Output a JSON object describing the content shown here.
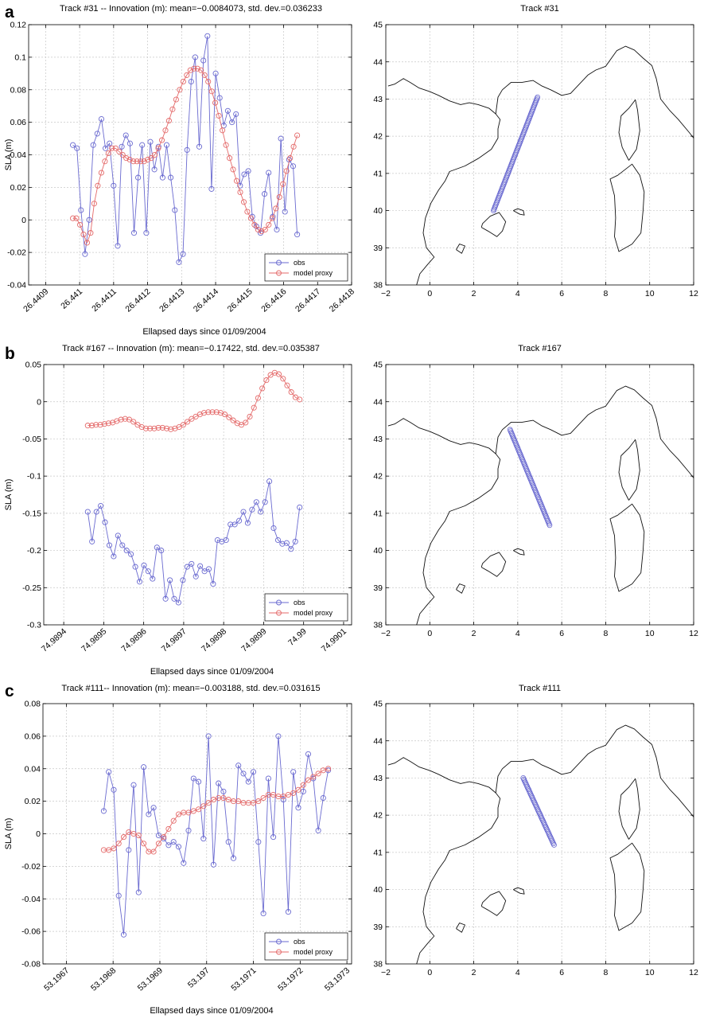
{
  "figure": {
    "panel_letters": [
      "a",
      "b",
      "c"
    ]
  },
  "colors": {
    "obs": "#6a6ad0",
    "model": "#e46a6a",
    "grid": "#c8c8c8",
    "coast": "#111111",
    "axes": "#000000"
  },
  "chart_data": [
    {
      "panel": "a",
      "type": "line",
      "title": "Track #31 -- Innovation (m): mean=−0.0084073, std. dev.=0.036233",
      "xlabel": "Ellapsed days since 01/09/2004",
      "ylabel": "SLA (m)",
      "xlim": [
        26.44085,
        26.4418
      ],
      "ylim": [
        -0.04,
        0.12
      ],
      "xticks": [
        26.4409,
        26.441,
        26.4411,
        26.4412,
        26.4413,
        26.4414,
        26.4415,
        26.4416,
        26.4417,
        26.4418
      ],
      "xtick_labels": [
        "26.4409",
        "26.441",
        "26.4411",
        "26.4412",
        "26.4413",
        "26.4414",
        "26.4415",
        "26.4416",
        "26.4417",
        "26.4418"
      ],
      "yticks": [
        -0.04,
        -0.02,
        0,
        0.02,
        0.04,
        0.06,
        0.08,
        0.1,
        0.12
      ],
      "ytick_labels": [
        "-0.04",
        "-0.02",
        "0",
        "0.02",
        "0.04",
        "0.06",
        "0.08",
        "0.1",
        "0.12"
      ],
      "grid": true,
      "legend_position": "bottom-right",
      "x_start": 26.44098,
      "x_end": 26.44164,
      "series": [
        {
          "name": "obs",
          "color": "#6a6ad0",
          "values": [
            0.046,
            0.044,
            0.006,
            -0.021,
            0.0,
            0.046,
            0.053,
            0.062,
            0.044,
            0.047,
            0.021,
            -0.016,
            0.045,
            0.052,
            0.047,
            -0.008,
            0.026,
            0.046,
            -0.008,
            0.048,
            0.031,
            0.045,
            0.026,
            0.046,
            0.026,
            0.006,
            -0.026,
            -0.021,
            0.043,
            0.085,
            0.1,
            0.045,
            0.098,
            0.113,
            0.019,
            0.09,
            0.075,
            0.058,
            0.067,
            0.06,
            0.065,
            0.021,
            0.028,
            0.03,
            0.002,
            -0.004,
            -0.008,
            0.016,
            0.029,
            0.002,
            -0.006,
            0.05,
            0.005,
            0.037,
            0.033,
            -0.009
          ]
        },
        {
          "name": "model proxy",
          "color": "#e46a6a",
          "values": [
            0.001,
            0.001,
            -0.003,
            -0.009,
            -0.014,
            -0.008,
            0.01,
            0.021,
            0.029,
            0.036,
            0.041,
            0.044,
            0.044,
            0.042,
            0.04,
            0.038,
            0.037,
            0.036,
            0.036,
            0.036,
            0.036,
            0.037,
            0.038,
            0.04,
            0.044,
            0.049,
            0.055,
            0.061,
            0.068,
            0.074,
            0.08,
            0.085,
            0.089,
            0.092,
            0.093,
            0.093,
            0.092,
            0.089,
            0.085,
            0.079,
            0.072,
            0.064,
            0.055,
            0.046,
            0.038,
            0.031,
            0.024,
            0.017,
            0.011,
            0.005,
            0.001,
            -0.003,
            -0.006,
            -0.007,
            -0.006,
            -0.003,
            0.001,
            0.007,
            0.014,
            0.022,
            0.03,
            0.038,
            0.045,
            0.052
          ]
        }
      ]
    },
    {
      "panel": "b",
      "type": "line",
      "title": "Track #167 -- Innovation (m): mean=−0.17422, std. dev.=0.035387",
      "xlabel": "Ellapsed days since 01/09/2004",
      "ylabel": "SLA (m)",
      "xlim": [
        74.98935,
        74.99012
      ],
      "ylim": [
        -0.3,
        0.05
      ],
      "xticks": [
        74.9894,
        74.9895,
        74.9896,
        74.9897,
        74.9898,
        74.9899,
        74.99,
        74.9901
      ],
      "xtick_labels": [
        "74.9894",
        "74.9895",
        "74.9896",
        "74.9897",
        "74.9898",
        "74.9899",
        "74.99",
        "74.9901"
      ],
      "yticks": [
        -0.3,
        -0.25,
        -0.2,
        -0.15,
        -0.1,
        -0.05,
        0,
        0.05
      ],
      "ytick_labels": [
        "-0.3",
        "-0.25",
        "-0.2",
        "-0.15",
        "-0.1",
        "-0.05",
        "0",
        "0.05"
      ],
      "grid": true,
      "legend_position": "bottom-right",
      "x_start": 74.98946,
      "x_end": 74.98999,
      "series": [
        {
          "name": "obs",
          "color": "#6a6ad0",
          "values": [
            -0.148,
            -0.188,
            -0.148,
            -0.14,
            -0.162,
            -0.193,
            -0.208,
            -0.18,
            -0.193,
            -0.2,
            -0.205,
            -0.222,
            -0.242,
            -0.22,
            -0.228,
            -0.238,
            -0.196,
            -0.2,
            -0.265,
            -0.24,
            -0.265,
            -0.27,
            -0.24,
            -0.222,
            -0.218,
            -0.235,
            -0.221,
            -0.228,
            -0.225,
            -0.245,
            -0.186,
            -0.188,
            -0.186,
            -0.165,
            -0.165,
            -0.16,
            -0.148,
            -0.163,
            -0.145,
            -0.135,
            -0.148,
            -0.135,
            -0.107,
            -0.17,
            -0.186,
            -0.191,
            -0.19,
            -0.198,
            -0.188,
            -0.142
          ]
        },
        {
          "name": "model proxy",
          "color": "#e46a6a",
          "values": [
            -0.032,
            -0.032,
            -0.031,
            -0.031,
            -0.03,
            -0.029,
            -0.028,
            -0.026,
            -0.024,
            -0.023,
            -0.024,
            -0.027,
            -0.031,
            -0.034,
            -0.036,
            -0.036,
            -0.036,
            -0.035,
            -0.035,
            -0.036,
            -0.037,
            -0.036,
            -0.034,
            -0.031,
            -0.027,
            -0.023,
            -0.02,
            -0.017,
            -0.015,
            -0.014,
            -0.014,
            -0.014,
            -0.015,
            -0.017,
            -0.021,
            -0.025,
            -0.029,
            -0.031,
            -0.028,
            -0.02,
            -0.008,
            0.005,
            0.018,
            0.029,
            0.036,
            0.039,
            0.037,
            0.031,
            0.022,
            0.013,
            0.006,
            0.003
          ]
        }
      ]
    },
    {
      "panel": "c",
      "type": "line",
      "title": "Track #111-- Innovation (m): mean=−0.003188, std. dev.=0.031615",
      "xlabel": "Ellapsed days since 01/09/2004",
      "ylabel": "SLA (m)",
      "xlim": [
        53.19665,
        53.19731
      ],
      "ylim": [
        -0.08,
        0.08
      ],
      "xticks": [
        53.1967,
        53.1968,
        53.1969,
        53.197,
        53.1971,
        53.1972,
        53.1973
      ],
      "xtick_labels": [
        "53.1967",
        "53.1968",
        "53.1969",
        "53.197",
        "53.1971",
        "53.1972",
        "53.1973"
      ],
      "yticks": [
        -0.08,
        -0.06,
        -0.04,
        -0.02,
        0,
        0.02,
        0.04,
        0.06,
        0.08
      ],
      "ytick_labels": [
        "-0.08",
        "-0.06",
        "-0.04",
        "-0.02",
        "0",
        "0.02",
        "0.04",
        "0.06",
        "0.08"
      ],
      "grid": true,
      "legend_position": "bottom-right",
      "x_start": 53.19678,
      "x_end": 53.19726,
      "series": [
        {
          "name": "obs",
          "color": "#6a6ad0",
          "values": [
            0.014,
            0.038,
            0.027,
            -0.038,
            -0.062,
            -0.01,
            0.03,
            -0.036,
            0.041,
            0.012,
            0.016,
            -0.001,
            -0.003,
            -0.007,
            -0.005,
            -0.008,
            -0.018,
            0.002,
            0.034,
            0.032,
            -0.003,
            0.06,
            -0.019,
            0.031,
            0.026,
            -0.005,
            -0.015,
            0.042,
            0.037,
            0.032,
            0.038,
            -0.005,
            -0.049,
            0.034,
            -0.002,
            0.06,
            0.021,
            -0.048,
            0.038,
            0.016,
            0.026,
            0.049,
            0.034,
            0.002,
            0.022,
            0.039
          ]
        },
        {
          "name": "model proxy",
          "color": "#e46a6a",
          "values": [
            -0.01,
            -0.01,
            -0.009,
            -0.006,
            -0.002,
            0.001,
            0.0,
            -0.001,
            -0.006,
            -0.011,
            -0.011,
            -0.006,
            -0.002,
            0.003,
            0.008,
            0.012,
            0.013,
            0.013,
            0.014,
            0.015,
            0.017,
            0.019,
            0.021,
            0.022,
            0.022,
            0.021,
            0.02,
            0.02,
            0.019,
            0.019,
            0.019,
            0.02,
            0.022,
            0.024,
            0.024,
            0.023,
            0.023,
            0.024,
            0.025,
            0.027,
            0.03,
            0.033,
            0.035,
            0.037,
            0.039,
            0.04
          ]
        }
      ]
    },
    {
      "panel": "a",
      "type": "scatter",
      "title": "Track #31",
      "xlim": [
        -2,
        12
      ],
      "ylim": [
        38,
        45
      ],
      "xticks": [
        -2,
        0,
        2,
        4,
        6,
        8,
        10,
        12
      ],
      "xtick_labels": [
        "−2",
        "0",
        "2",
        "4",
        "6",
        "8",
        "10",
        "12"
      ],
      "yticks": [
        38,
        39,
        40,
        41,
        42,
        43,
        44,
        45
      ],
      "ytick_labels": [
        "38",
        "39",
        "40",
        "41",
        "42",
        "43",
        "44",
        "45"
      ],
      "grid": true,
      "track": {
        "lon": [
          2.9,
          4.9
        ],
        "lat": [
          40.0,
          43.05
        ],
        "count": 80
      }
    },
    {
      "panel": "b",
      "type": "scatter",
      "title": "Track #167",
      "xlim": [
        -2,
        12
      ],
      "ylim": [
        38,
        45
      ],
      "xticks": [
        -2,
        0,
        2,
        4,
        6,
        8,
        10,
        12
      ],
      "xtick_labels": [
        "−2",
        "0",
        "2",
        "4",
        "6",
        "8",
        "10",
        "12"
      ],
      "yticks": [
        38,
        39,
        40,
        41,
        42,
        43,
        44,
        45
      ],
      "ytick_labels": [
        "38",
        "39",
        "40",
        "41",
        "42",
        "43",
        "44",
        "45"
      ],
      "grid": true,
      "track": {
        "lon": [
          3.65,
          5.45
        ],
        "lat": [
          43.25,
          40.68
        ],
        "count": 66
      }
    },
    {
      "panel": "c",
      "type": "scatter",
      "title": "Track #111",
      "xlim": [
        -2,
        12
      ],
      "ylim": [
        38,
        45
      ],
      "xticks": [
        -2,
        0,
        2,
        4,
        6,
        8,
        10,
        12
      ],
      "xtick_labels": [
        "−2",
        "0",
        "2",
        "4",
        "6",
        "8",
        "10",
        "12"
      ],
      "yticks": [
        38,
        39,
        40,
        41,
        42,
        43,
        44,
        45
      ],
      "ytick_labels": [
        "38",
        "39",
        "40",
        "41",
        "42",
        "43",
        "44",
        "45"
      ],
      "grid": true,
      "track": {
        "lon": [
          4.25,
          5.65
        ],
        "lat": [
          43.0,
          41.2
        ],
        "count": 48
      }
    }
  ]
}
